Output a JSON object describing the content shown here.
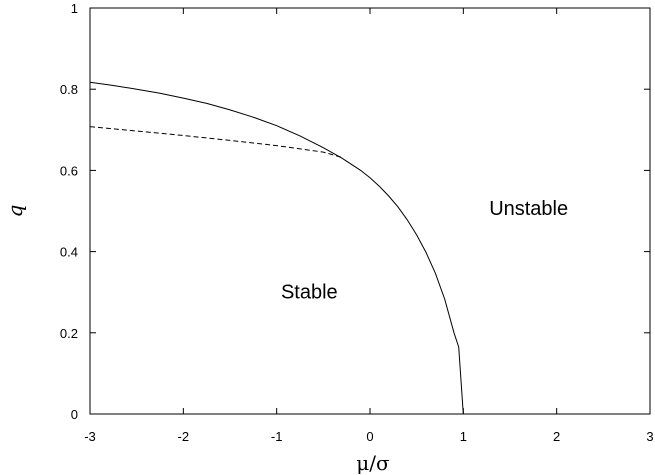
{
  "chart_data": {
    "type": "line",
    "title": "",
    "xlabel": "μ/σ",
    "ylabel": "q",
    "xlim": [
      -3,
      3
    ],
    "ylim": [
      0,
      1
    ],
    "x_ticks": [
      -3,
      -2,
      -1,
      0,
      1,
      2,
      3
    ],
    "y_ticks": [
      0,
      0.2,
      0.4,
      0.6,
      0.8,
      1
    ],
    "grid": false,
    "legend": "none",
    "series": [
      {
        "style": "solid",
        "color": "#000000",
        "x": [
          -3,
          -2.75,
          -2.5,
          -2.25,
          -2,
          -1.75,
          -1.5,
          -1.25,
          -1,
          -0.75,
          -0.5,
          -0.3,
          -0.1,
          0,
          0.1,
          0.2,
          0.3,
          0.4,
          0.5,
          0.6,
          0.7,
          0.8,
          0.9,
          0.95,
          1.0
        ],
        "y": [
          0.817,
          0.809,
          0.8,
          0.79,
          0.778,
          0.765,
          0.749,
          0.731,
          0.71,
          0.685,
          0.656,
          0.63,
          0.6,
          0.582,
          0.561,
          0.537,
          0.51,
          0.478,
          0.441,
          0.398,
          0.347,
          0.283,
          0.2,
          0.165,
          0.0
        ]
      },
      {
        "style": "dashed",
        "color": "#000000",
        "x": [
          -3,
          -2.5,
          -2,
          -1.5,
          -1,
          -0.5,
          -0.3
        ],
        "y": [
          0.708,
          0.697,
          0.686,
          0.674,
          0.661,
          0.645,
          0.632
        ]
      }
    ],
    "annotations": [
      {
        "text": "Stable",
        "x": -0.65,
        "y": 0.285
      },
      {
        "text": "Unstable",
        "x": 1.7,
        "y": 0.49
      }
    ]
  }
}
